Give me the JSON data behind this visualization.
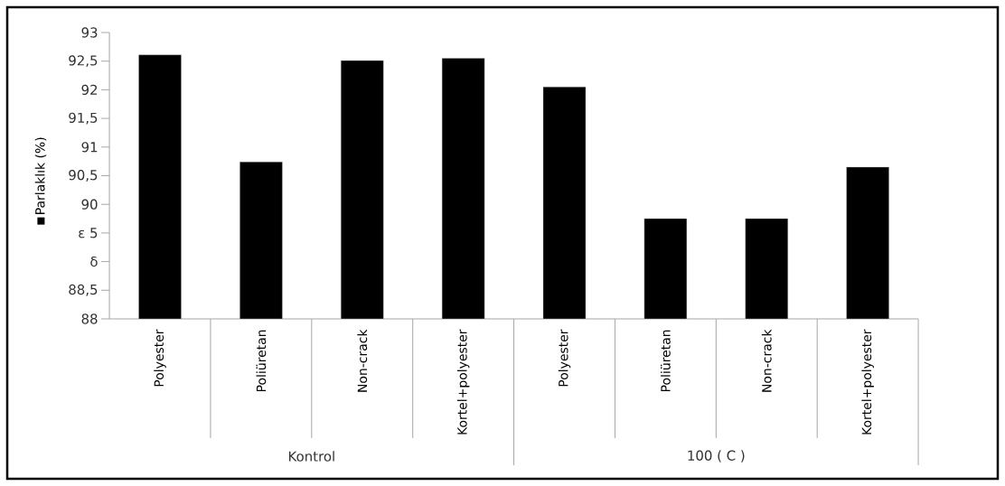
{
  "chart_data": {
    "type": "bar",
    "categories": [
      "Polyester",
      "Poliüretan",
      "Non-crack",
      "Kortel+polyester",
      "Polyester",
      "Poliüretan",
      "Non-crack",
      "Kortel+polyester"
    ],
    "series": [
      {
        "name": "Parlaklık (%)",
        "color": "#000000",
        "values": [
          92.61,
          90.74,
          92.51,
          92.55,
          92.05,
          89.75,
          89.75,
          90.65
        ]
      }
    ],
    "ylim": [
      88,
      93
    ],
    "yticks": [
      88,
      {
        "value": 88.5,
        "label": "88,5"
      },
      {
        "value": 89,
        "label": "δ"
      },
      {
        "value": 89.5,
        "label": "ε 5"
      },
      90,
      {
        "value": 90.5,
        "label": "90,5"
      },
      91,
      {
        "value": 91.5,
        "label": "91,5"
      },
      92,
      {
        "value": 92.5,
        "label": "92,5"
      },
      93
    ],
    "annotations": [
      "Kontrol",
      "100 ( C )"
    ],
    "legend": "left",
    "grid": false
  }
}
